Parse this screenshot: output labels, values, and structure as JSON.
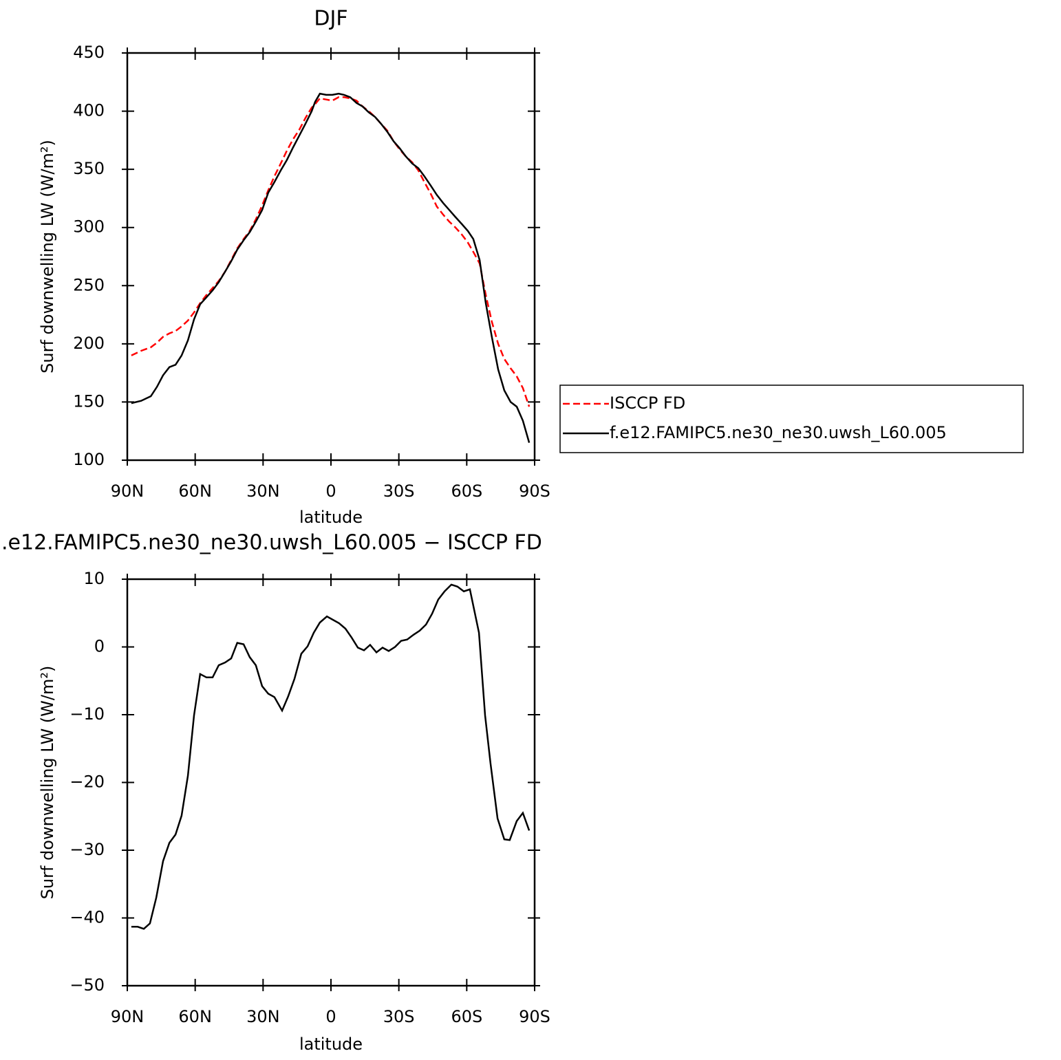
{
  "chart_data": [
    {
      "type": "line",
      "title": "DJF",
      "xlabel": "latitude",
      "ylabel": "Surf downwelling LW (W/m²)",
      "xlim": [
        90,
        -90
      ],
      "xticks": [
        {
          "value": 90,
          "label": "90N"
        },
        {
          "value": 60,
          "label": "60N"
        },
        {
          "value": 30,
          "label": "30N"
        },
        0,
        {
          "value": -30,
          "label": "30S"
        },
        {
          "value": -60,
          "label": "60S"
        },
        {
          "value": -90,
          "label": "90S"
        }
      ],
      "ylim": [
        100,
        450
      ],
      "yticks": [
        100,
        150,
        200,
        250,
        300,
        350,
        400,
        450
      ],
      "legend": "right",
      "x": [
        88.2,
        83.9,
        79.6,
        76.9,
        74.2,
        71.4,
        68.7,
        66.0,
        63.2,
        60.5,
        57.8,
        55.0,
        52.3,
        49.6,
        46.8,
        44.1,
        41.4,
        38.6,
        35.9,
        33.2,
        30.4,
        27.7,
        25.0,
        22.2,
        19.5,
        16.7,
        14.0,
        11.3,
        8.5,
        7.0,
        4.9,
        2.1,
        -0.6,
        -3.4,
        -5.8,
        -8.5,
        -11.3,
        -14.0,
        -16.7,
        -19.5,
        -22.2,
        -25.0,
        -27.7,
        -30.4,
        -33.1,
        -35.9,
        -38.6,
        -41.3,
        -44.1,
        -46.8,
        -49.6,
        -52.3,
        -55.0,
        -57.8,
        -60.5,
        -62.9,
        -65.7,
        -68.4,
        -71.1,
        -73.9,
        -76.6,
        -79.4,
        -82.1,
        -84.8,
        -87.6
      ],
      "series": [
        {
          "name": "ISCCP FD",
          "color": "#ff0000",
          "style": "dashed",
          "values": [
            190,
            194,
            197,
            201,
            206,
            209,
            211,
            215,
            220,
            227,
            235,
            242,
            248,
            254,
            262,
            272,
            282,
            290,
            297,
            307,
            319,
            332,
            344,
            355,
            366,
            376,
            384,
            394,
            403,
            406,
            411,
            410,
            409,
            412,
            412,
            411,
            409,
            404,
            400,
            395,
            389,
            383,
            374,
            367,
            361,
            356,
            349,
            339,
            329,
            318,
            311,
            305,
            300,
            294,
            287,
            279,
            269,
            242,
            219,
            200,
            187,
            179,
            172,
            162,
            146
          ]
        },
        {
          "name": "f.e12.FAMIPC5.ne30_ne30.uwsh_L60.005",
          "color": "#000000",
          "style": "solid",
          "values": [
            149,
            151,
            155,
            163,
            173,
            180,
            182,
            190,
            203,
            221,
            234,
            240,
            246,
            253,
            262,
            271,
            281,
            289,
            296,
            305,
            315,
            330,
            339,
            349,
            358,
            369,
            379,
            389,
            400,
            408,
            415,
            414,
            414,
            415,
            414,
            412,
            407,
            404,
            399,
            395,
            389,
            382,
            374,
            368,
            361,
            355,
            351,
            344,
            336,
            328,
            321,
            315,
            309,
            303,
            297,
            290,
            272,
            235,
            206,
            178,
            160,
            150,
            146,
            134,
            115
          ]
        }
      ]
    },
    {
      "type": "line",
      "title": ".e12.FAMIPC5.ne30_ne30.uwsh_L60.005 − ISCCP FD",
      "xlabel": "latitude",
      "ylabel": "Surf downwelling LW (W/m²)",
      "xlim": [
        90,
        -90
      ],
      "xticks": [
        {
          "value": 90,
          "label": "90N"
        },
        {
          "value": 60,
          "label": "60N"
        },
        {
          "value": 30,
          "label": "30N"
        },
        0,
        {
          "value": -30,
          "label": "30S"
        },
        {
          "value": -60,
          "label": "60S"
        },
        {
          "value": -90,
          "label": "90S"
        }
      ],
      "ylim": [
        -50,
        10
      ],
      "yticks": [
        {
          "value": -50,
          "label": "−50"
        },
        {
          "value": -40,
          "label": "−40"
        },
        {
          "value": -30,
          "label": "−30"
        },
        {
          "value": -20,
          "label": "−20"
        },
        {
          "value": -10,
          "label": "−10"
        },
        0,
        10
      ],
      "x": [
        88.2,
        85.4,
        82.7,
        80.0,
        77.2,
        74.2,
        71.4,
        68.7,
        66.0,
        63.2,
        60.5,
        57.8,
        55.0,
        52.3,
        49.6,
        46.8,
        44.1,
        41.4,
        38.6,
        35.9,
        33.2,
        30.4,
        27.7,
        25.0,
        21.6,
        18.9,
        16.1,
        13.1,
        10.3,
        7.6,
        4.9,
        1.8,
        -0.9,
        -3.6,
        -6.4,
        -9.1,
        -11.9,
        -14.6,
        -17.3,
        -20.1,
        -22.8,
        -25.5,
        -28.3,
        -31.0,
        -33.7,
        -36.5,
        -39.2,
        -42.0,
        -44.7,
        -47.4,
        -50.2,
        -53.2,
        -55.9,
        -58.7,
        -61.4,
        -65.4,
        -68.1,
        -70.5,
        -73.6,
        -76.6,
        -79.0,
        -82.1,
        -84.8,
        -87.6
      ],
      "series": [
        {
          "color": "#000000",
          "style": "solid",
          "values": [
            -41.3,
            -41.3,
            -41.6,
            -40.8,
            -37.0,
            -31.6,
            -28.9,
            -27.7,
            -24.9,
            -19.0,
            -10.1,
            -4.0,
            -4.5,
            -4.5,
            -2.7,
            -2.3,
            -1.7,
            0.6,
            0.4,
            -1.5,
            -2.7,
            -5.8,
            -6.9,
            -7.4,
            -9.4,
            -7.3,
            -4.7,
            -1.0,
            0.1,
            2.1,
            3.6,
            4.5,
            4.0,
            3.5,
            2.7,
            1.4,
            -0.1,
            -0.5,
            0.3,
            -0.8,
            -0.1,
            -0.6,
            0.0,
            0.9,
            1.1,
            1.8,
            2.4,
            3.3,
            4.9,
            7.0,
            8.2,
            9.2,
            8.9,
            8.2,
            8.5,
            2.1,
            -10.1,
            -17.2,
            -25.3,
            -28.4,
            -28.5,
            -25.7,
            -24.5,
            -27.1
          ]
        }
      ]
    }
  ]
}
